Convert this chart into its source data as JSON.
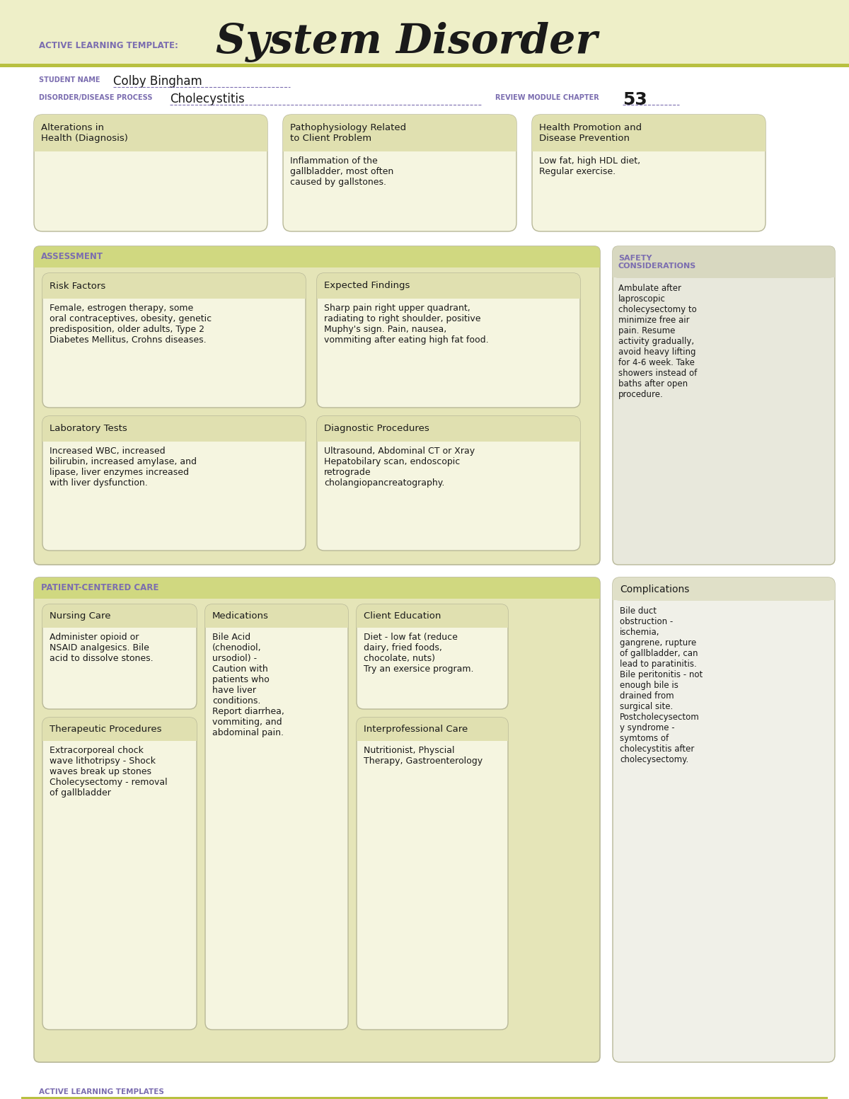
{
  "white": "#ffffff",
  "header_bg": "#eeefc8",
  "olive_line": "#b8c040",
  "purple_text": "#7b6db0",
  "dark_text": "#1a1a1a",
  "title_large": "System Disorder",
  "title_small": "ACTIVE LEARNING TEMPLATE:",
  "student_label": "STUDENT NAME",
  "student_name": "Colby Bingham",
  "disorder_label": "DISORDER/DISEASE PROCESS",
  "disorder_name": "Cholecystitis",
  "review_label": "REVIEW MODULE CHAPTER",
  "review_num": "53",
  "top_boxes": [
    {
      "title": "Alterations in\nHealth (Diagnosis)",
      "body": ""
    },
    {
      "title": "Pathophysiology Related\nto Client Problem",
      "body": "Inflammation of the\ngallbladder, most often\ncaused by gallstones."
    },
    {
      "title": "Health Promotion and\nDisease Prevention",
      "body": "Low fat, high HDL diet,\nRegular exercise."
    }
  ],
  "assessment_label": "ASSESSMENT",
  "safety_label": "SAFETY\nCONSIDERATIONS",
  "safety_text": "Ambulate after\nlaproscopic\ncholecysectomy to\nminimize free air\npain. Resume\nactivity gradually,\navoid heavy lifting\nfor 4-6 week. Take\nshowers instead of\nbaths after open\nprocedure.",
  "assessment_boxes": [
    {
      "title": "Risk Factors",
      "body": "Female, estrogen therapy, some\noral contraceptives, obesity, genetic\npredisposition, older adults, Type 2\nDiabetes Mellitus, Crohns diseases."
    },
    {
      "title": "Expected Findings",
      "body": "Sharp pain right upper quadrant,\nradiating to right shoulder, positive\nMuphy's sign. Pain, nausea,\nvommiting after eating high fat food."
    },
    {
      "title": "Laboratory Tests",
      "body": "Increased WBC, increased\nbilirubin, increased amylase, and\nlipase, liver enzymes increased\nwith liver dysfunction."
    },
    {
      "title": "Diagnostic Procedures",
      "body": "Ultrasound, Abdominal CT or Xray\nHepatobilary scan, endoscopic\nretrograde\ncholangiopancreatography."
    }
  ],
  "patient_care_label": "PATIENT-CENTERED CARE",
  "complications_title": "Complications",
  "complications_text": "Bile duct\nobstruction -\nischemia,\ngangrene, rupture\nof gallbladder, can\nlead to paratinitis.\nBile peritonitis - not\nenough bile is\ndrained from\nsurgical site.\nPostcholecysectom\ny syndrome -\nsymtoms of\ncholecystitis after\ncholecysectomy.",
  "patient_boxes": [
    {
      "title": "Nursing Care",
      "body": "Administer opioid or\nNSAID analgesics. Bile\nacid to dissolve stones."
    },
    {
      "title": "Medications",
      "body": "Bile Acid\n(chenodiol,\nursodiol) -\nCaution with\npatients who\nhave liver\nconditions.\nReport diarrhea,\nvommiting, and\nabdominal pain."
    },
    {
      "title": "Client Education",
      "body": "Diet - low fat (reduce\ndairy, fried foods,\nchocolate, nuts)\nTry an exersice program."
    },
    {
      "title": "Therapeutic Procedures",
      "body": "Extracorporeal chock\nwave lithotripsy - Shock\nwaves break up stones\nCholecysectomy - removal\nof gallbladder"
    },
    {
      "title": "Interprofessional Care",
      "body": "Nutritionist, Physcial\nTherapy, Gastroenterology"
    }
  ],
  "footer_text": "ACTIVE LEARNING TEMPLATES",
  "box_header_bg": "#e0e0b0",
  "box_body_bg": "#f5f5e0",
  "box_border": "#b8b898",
  "section_bg": "#e5e5b8",
  "section_header_bg": "#d0d880",
  "safety_bg": "#e8e8dc",
  "safety_header_bg": "#d8d8c0",
  "comp_bg": "#f0f0e8",
  "comp_header_bg": "#e0e0c8"
}
